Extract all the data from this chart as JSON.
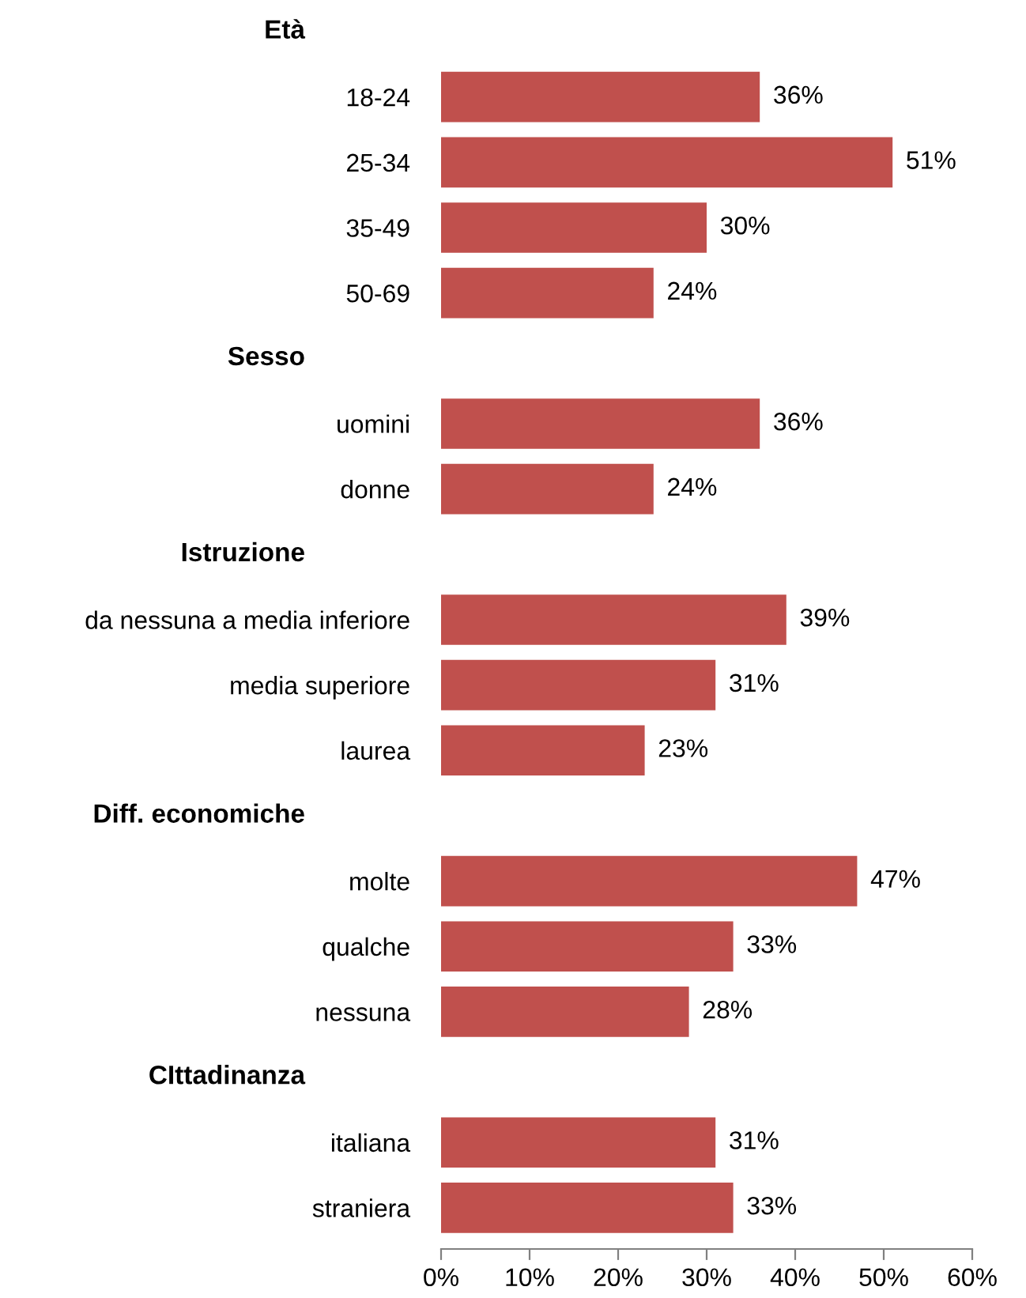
{
  "chart_data": {
    "type": "bar",
    "orientation": "horizontal",
    "categories": [
      null,
      "18-24",
      "25-34",
      "35-49",
      "50-69",
      null,
      "uomini",
      "donne",
      null,
      "da nessuna a media inferiore",
      "media superiore",
      "laurea",
      null,
      "molte",
      "qualche",
      "nessuna",
      null,
      "italiana",
      "straniera"
    ],
    "annotations": [
      "Età",
      "Sesso",
      "Istruzione",
      "Diff. economiche",
      "CIttadinanza"
    ],
    "values": [
      null,
      36,
      51,
      30,
      24,
      null,
      36,
      24,
      null,
      39,
      31,
      23,
      null,
      47,
      33,
      28,
      null,
      31,
      33
    ],
    "value_labels": [
      null,
      "36%",
      "51%",
      "30%",
      "24%",
      null,
      "36%",
      "24%",
      null,
      "39%",
      "31%",
      "23%",
      null,
      "47%",
      "33%",
      "28%",
      null,
      "31%",
      "33%"
    ],
    "color": "#c0504d",
    "xlim": [
      0,
      60
    ],
    "xticks": [
      {
        "value": 0,
        "label": "0%"
      },
      {
        "value": 10,
        "label": "10%"
      },
      {
        "value": 20,
        "label": "20%"
      },
      {
        "value": 30,
        "label": "30%"
      },
      {
        "value": 40,
        "label": "40%"
      },
      {
        "value": 50,
        "label": "50%"
      },
      {
        "value": 60,
        "label": "60%"
      }
    ],
    "grid": false,
    "legend": false
  }
}
